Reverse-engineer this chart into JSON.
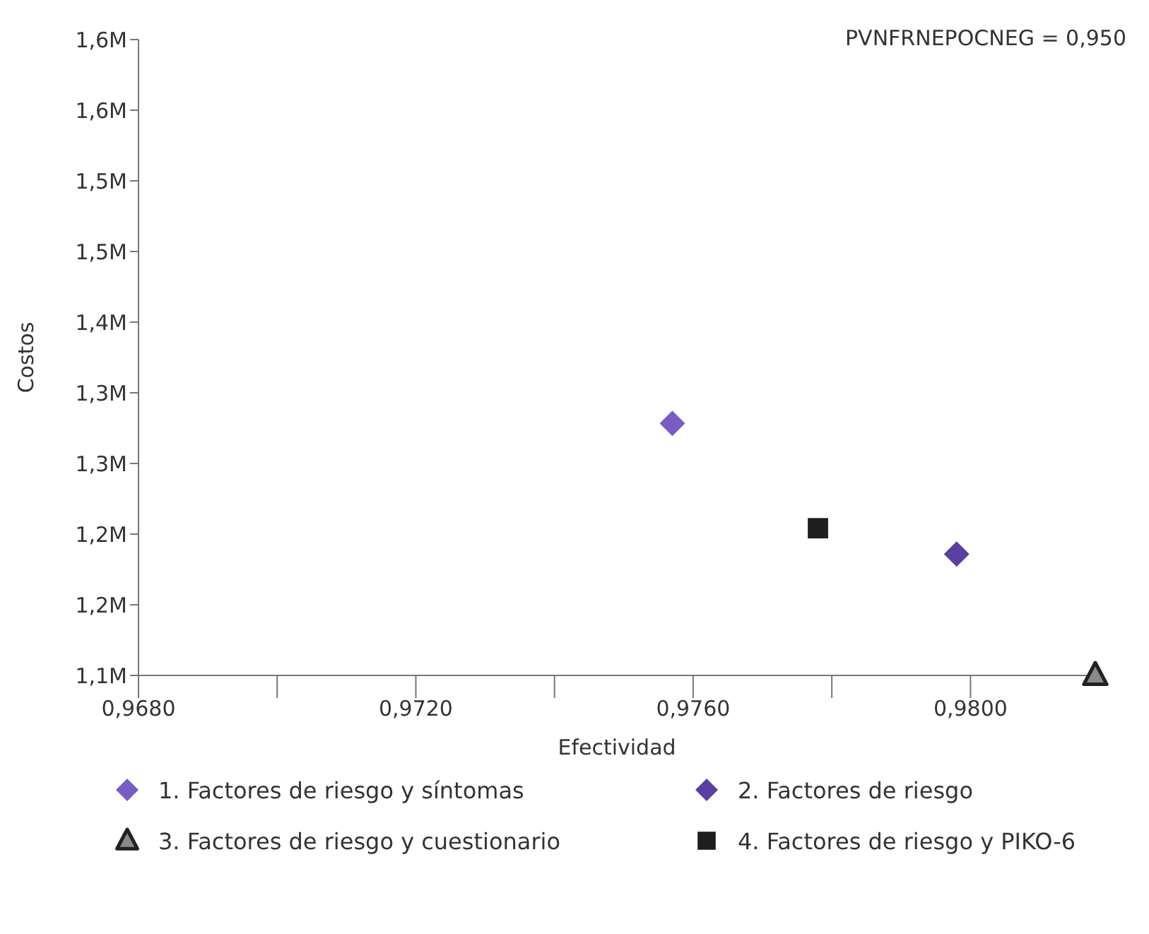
{
  "chart_data": {
    "type": "scatter",
    "xlabel": "Efectividad",
    "ylabel": "Costos",
    "annotations": [
      "PVNFRNEPOCNEG = 0,950"
    ],
    "xlim": [
      0.968,
      0.9818
    ],
    "xticks": [
      {
        "value": 0.968,
        "label": "0,9680"
      },
      {
        "value": 0.97,
        "label": null
      },
      {
        "value": 0.972,
        "label": "0,9720"
      },
      {
        "value": 0.974,
        "label": null
      },
      {
        "value": 0.976,
        "label": "0,9760"
      },
      {
        "value": 0.978,
        "label": null
      },
      {
        "value": 0.98,
        "label": "0,9800"
      }
    ],
    "ylim": [
      1.1,
      1.64
    ],
    "yticks": [
      {
        "value": 1.1,
        "label": "1,1M"
      },
      {
        "value": 1.16,
        "label": "1,2M"
      },
      {
        "value": 1.22,
        "label": "1,2M"
      },
      {
        "value": 1.28,
        "label": "1,3M"
      },
      {
        "value": 1.34,
        "label": "1,3M"
      },
      {
        "value": 1.4,
        "label": "1,4M"
      },
      {
        "value": 1.46,
        "label": "1,5M"
      },
      {
        "value": 1.52,
        "label": "1,5M"
      },
      {
        "value": 1.58,
        "label": "1,6M"
      },
      {
        "value": 1.64,
        "label": "1,6M"
      }
    ],
    "grid": false,
    "legend": "bottom",
    "series": [
      {
        "name": "1. Factores de riesgo y síntomas",
        "color": "#7b5cc4",
        "marker": "diamond",
        "x": [
          0.9757
        ],
        "values": [
          1.314
        ]
      },
      {
        "name": "2. Factores de riesgo",
        "color": "#5b3fa0",
        "marker": "diamond",
        "x": [
          0.9798
        ],
        "values": [
          1.203
        ]
      },
      {
        "name": "3. Factores de riesgo y cuestionario",
        "color": "#8a8a8a",
        "marker": "triangle",
        "x": [
          0.9818
        ],
        "values": [
          1.1
        ]
      },
      {
        "name": "4. Factores de riesgo y PIKO-6",
        "color": "#1e1e1e",
        "marker": "square",
        "x": [
          0.9778
        ],
        "values": [
          1.225
        ]
      }
    ]
  }
}
